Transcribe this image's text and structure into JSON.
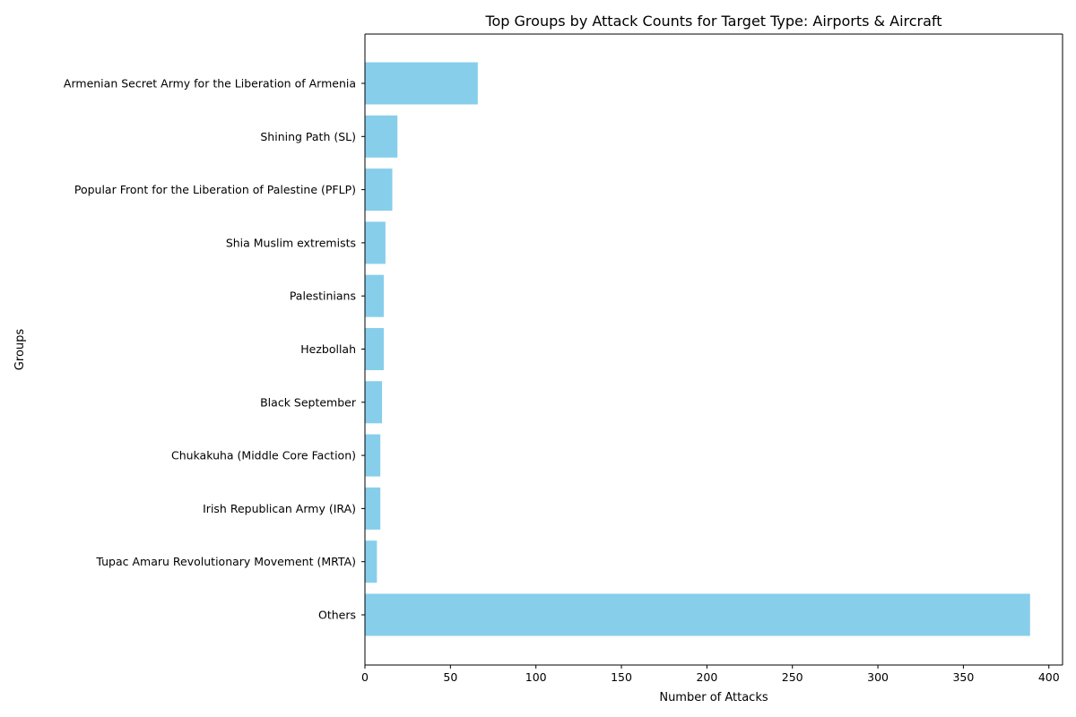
{
  "chart_data": {
    "type": "bar",
    "orientation": "horizontal",
    "title": "Top Groups by Attack Counts for Target Type: Airports & Aircraft",
    "xlabel": "Number of Attacks",
    "ylabel": "Groups",
    "categories": [
      "Armenian Secret Army for the Liberation of Armenia",
      "Shining Path (SL)",
      "Popular Front for the Liberation of Palestine (PFLP)",
      "Shia Muslim extremists",
      "Palestinians",
      "Hezbollah",
      "Black September",
      "Chukakuha (Middle Core Faction)",
      "Irish Republican Army (IRA)",
      "Tupac Amaru Revolutionary Movement (MRTA)",
      "Others"
    ],
    "values": [
      66,
      19,
      16,
      12,
      11,
      11,
      10,
      9,
      9,
      7,
      389
    ],
    "xlim": [
      0,
      408
    ],
    "xticks": [
      0,
      50,
      100,
      150,
      200,
      250,
      300,
      350,
      400
    ],
    "xtick_labels": [
      "0",
      "50",
      "100",
      "150",
      "200",
      "250",
      "300",
      "350",
      "400"
    ],
    "bar_color": "#87ceeb",
    "grid": false,
    "legend": "none"
  }
}
